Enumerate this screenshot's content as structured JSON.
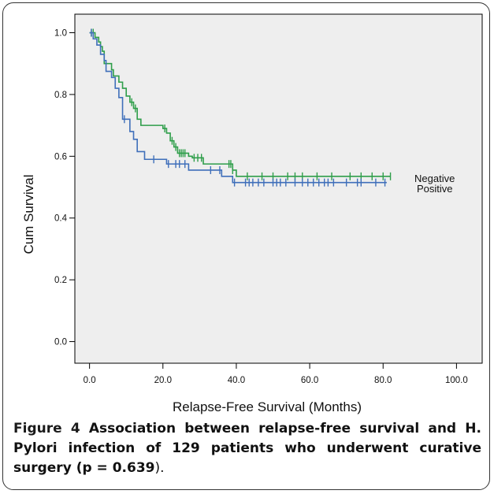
{
  "chart_data": {
    "type": "line",
    "xlabel": "Relapse-Free Survival (Months)",
    "ylabel": "Cum Survival",
    "xlim": [
      -4,
      107
    ],
    "ylim": [
      -0.07,
      1.06
    ],
    "x_ticks": [
      "0.0",
      "20.0",
      "40.0",
      "60.0",
      "80.0",
      "100.0"
    ],
    "x_tick_values": [
      0,
      20,
      40,
      60,
      80,
      100
    ],
    "y_ticks": [
      "0.0",
      "0.2",
      "0.4",
      "0.6",
      "0.8",
      "1.0"
    ],
    "y_tick_values": [
      0,
      0.2,
      0.4,
      0.6,
      0.8,
      1.0
    ],
    "legend_position": "right",
    "series": [
      {
        "name": "Negative",
        "color": "#2f9e4a",
        "steps": [
          [
            0,
            1.0
          ],
          [
            1.5,
            0.985
          ],
          [
            2.5,
            0.97
          ],
          [
            3,
            0.955
          ],
          [
            3.5,
            0.94
          ],
          [
            4,
            0.9
          ],
          [
            6,
            0.88
          ],
          [
            6.5,
            0.86
          ],
          [
            8,
            0.84
          ],
          [
            9,
            0.82
          ],
          [
            10,
            0.795
          ],
          [
            11,
            0.775
          ],
          [
            12,
            0.755
          ],
          [
            13,
            0.72
          ],
          [
            14,
            0.7
          ],
          [
            20,
            0.69
          ],
          [
            21,
            0.675
          ],
          [
            22,
            0.65
          ],
          [
            23,
            0.63
          ],
          [
            24,
            0.61
          ],
          [
            26,
            0.61
          ],
          [
            27,
            0.6
          ],
          [
            28,
            0.595
          ],
          [
            31,
            0.575
          ],
          [
            39,
            0.555
          ],
          [
            40,
            0.535
          ],
          [
            82,
            0.535
          ]
        ],
        "censors": [
          0.5,
          1,
          11.5,
          12.5,
          20.5,
          22.5,
          23.5,
          24.5,
          25,
          25.5,
          26,
          28.5,
          29.5,
          30.5,
          38,
          38.5,
          39,
          43,
          47,
          50,
          54,
          56,
          58,
          62,
          66,
          71,
          74,
          77,
          80,
          82
        ]
      },
      {
        "name": "Positive",
        "color": "#3f6fba",
        "steps": [
          [
            0,
            1.0
          ],
          [
            1,
            0.98
          ],
          [
            2,
            0.96
          ],
          [
            3,
            0.93
          ],
          [
            4,
            0.91
          ],
          [
            4.5,
            0.875
          ],
          [
            6,
            0.855
          ],
          [
            7,
            0.82
          ],
          [
            8,
            0.79
          ],
          [
            9,
            0.72
          ],
          [
            11,
            0.68
          ],
          [
            12,
            0.655
          ],
          [
            13,
            0.615
          ],
          [
            15,
            0.59
          ],
          [
            21,
            0.575
          ],
          [
            27,
            0.555
          ],
          [
            36,
            0.535
          ],
          [
            39,
            0.515
          ],
          [
            81,
            0.515
          ]
        ],
        "censors": [
          0.5,
          9.5,
          17.5,
          21.5,
          23.5,
          24.5,
          26,
          33,
          35.5,
          39.5,
          42.5,
          43.5,
          44.5,
          46,
          47.5,
          50,
          51,
          52,
          53.5,
          56,
          58,
          59.5,
          61,
          62.5,
          64,
          65,
          66.5,
          70,
          73,
          74,
          78,
          80.5
        ]
      }
    ]
  },
  "caption": {
    "label": "Figure 4",
    "text_before": " Association between relapse-free survival and H. Pylori infection of 129 patients who underwent curative surgery (",
    "bold_stat": "p = 0.639",
    "text_after": ")."
  }
}
